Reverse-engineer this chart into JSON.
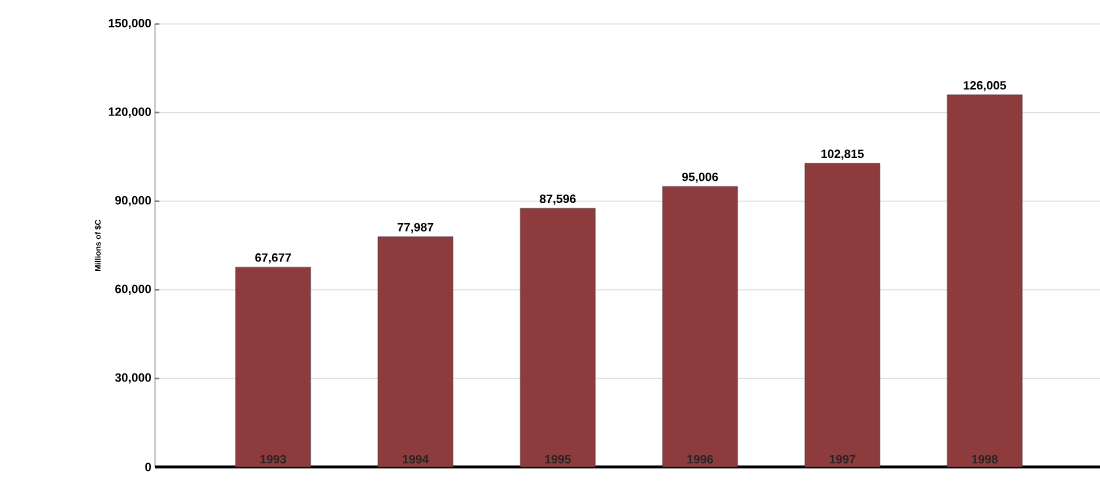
{
  "chart_data": {
    "type": "bar",
    "ylabel": "Millions of $C",
    "categories": [
      "1993",
      "1994",
      "1995",
      "1996",
      "1997",
      "1998"
    ],
    "values": [
      67677,
      77987,
      87596,
      95006,
      102815,
      126005
    ],
    "value_labels": [
      "67,677",
      "77,987",
      "87,596",
      "95,006",
      "102,815",
      "126,005"
    ],
    "color": "#8e3b3e",
    "ylim": [
      0,
      150000
    ],
    "yticks": [
      {
        "value": 0,
        "label": "0"
      },
      {
        "value": 30000,
        "label": "30,000"
      },
      {
        "value": 60000,
        "label": "60,000"
      },
      {
        "value": 90000,
        "label": "90,000"
      },
      {
        "value": 120000,
        "label": "120,000"
      },
      {
        "value": 150000,
        "label": "150,000"
      }
    ],
    "grid": "y"
  }
}
